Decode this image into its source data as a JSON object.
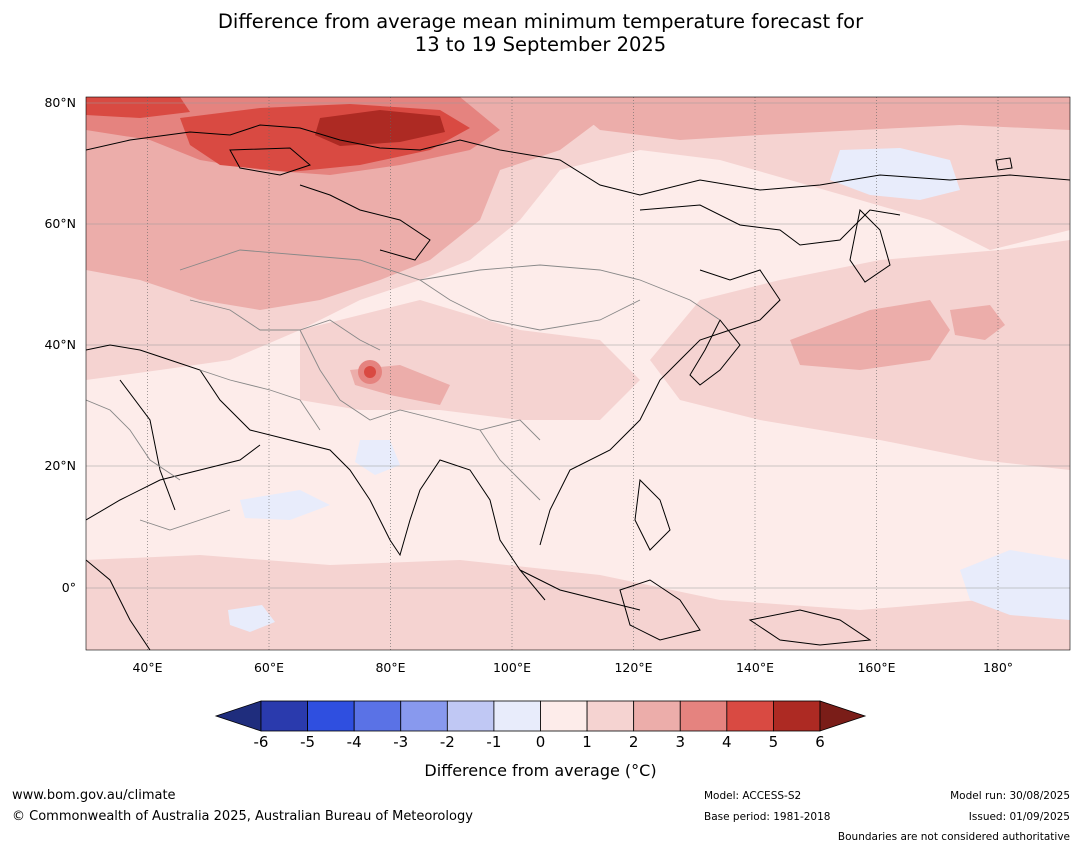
{
  "title": {
    "line1": "Difference from average mean minimum temperature forecast for",
    "line2": "13 to 19 September 2025"
  },
  "map": {
    "lat_labels": [
      "80°N",
      "60°N",
      "40°N",
      "20°N",
      "0°"
    ],
    "lon_labels": [
      "40°E",
      "60°E",
      "80°E",
      "100°E",
      "120°E",
      "140°E",
      "160°E",
      "180°"
    ],
    "extent": {
      "lon_min": 30,
      "lon_max": 190,
      "lat_min": -10,
      "lat_max": 81
    }
  },
  "colorbar": {
    "ticks": [
      "-6",
      "-5",
      "-4",
      "-3",
      "-2",
      "-1",
      "0",
      "1",
      "2",
      "3",
      "4",
      "5",
      "6"
    ],
    "colors": [
      "#1f2d7d",
      "#2a3aad",
      "#2f4fe0",
      "#5a72e6",
      "#8899ee",
      "#c0c8f4",
      "#e8ecfb",
      "#fdecea",
      "#f5d3d1",
      "#ecadaa",
      "#e5837f",
      "#d94a42",
      "#ad2a23",
      "#7a1d18"
    ],
    "title": "Difference from average (°C)"
  },
  "footer": {
    "website": "www.bom.gov.au/climate",
    "copyright": "© Commonwealth of Australia 2025, Australian Bureau of Meteorology",
    "model": "Model: ACCESS-S2",
    "base_period": "Base period: 1981-2018",
    "model_run": "Model run: 30/08/2025",
    "issued": "Issued: 01/09/2025",
    "boundaries_note": "Boundaries are not considered authoritative"
  }
}
